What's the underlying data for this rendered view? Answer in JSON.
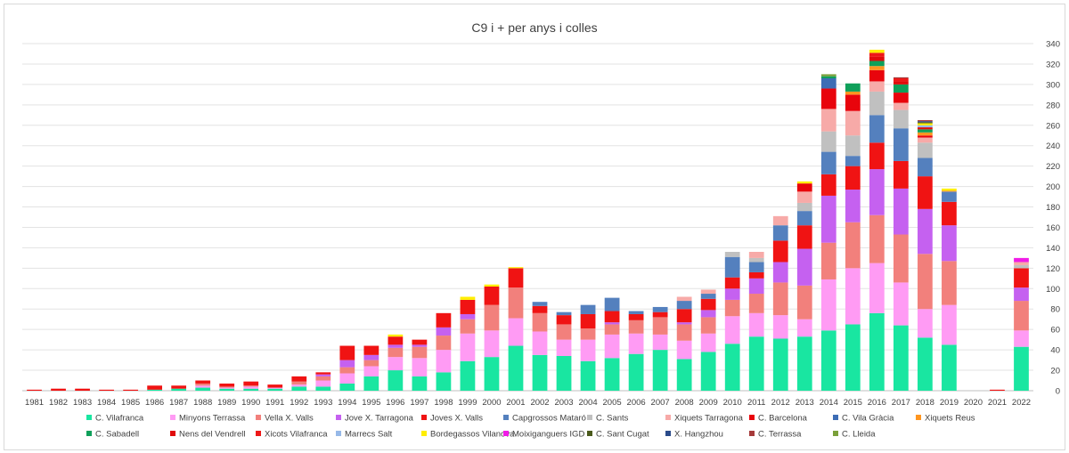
{
  "chart_data": {
    "type": "bar",
    "stacked": true,
    "title": "C9 i + per anys i colles",
    "xlabel": "",
    "ylabel": "",
    "ylim": [
      0,
      340
    ],
    "yticks": [
      0,
      20,
      40,
      60,
      80,
      100,
      120,
      140,
      160,
      180,
      200,
      220,
      240,
      260,
      280,
      300,
      320,
      340
    ],
    "grid": true,
    "legend_position": "bottom",
    "categories": [
      "1981",
      "1982",
      "1983",
      "1984",
      "1985",
      "1986",
      "1987",
      "1988",
      "1989",
      "1990",
      "1991",
      "1992",
      "1993",
      "1994",
      "1995",
      "1996",
      "1997",
      "1998",
      "1999",
      "2000",
      "2001",
      "2002",
      "2003",
      "2004",
      "2005",
      "2006",
      "2007",
      "2008",
      "2009",
      "2010",
      "2011",
      "2012",
      "2013",
      "2014",
      "2015",
      "2016",
      "2017",
      "2018",
      "2019",
      "2020",
      "2021",
      "2022"
    ],
    "series": [
      {
        "name": "C. Vilafranca",
        "color": "#19e6a1",
        "values": [
          0,
          0,
          0,
          0,
          0,
          1,
          2,
          3,
          2,
          2,
          2,
          4,
          4,
          7,
          14,
          20,
          14,
          18,
          29,
          33,
          44,
          35,
          34,
          29,
          32,
          36,
          40,
          31,
          38,
          46,
          53,
          51,
          53,
          59,
          65,
          76,
          64,
          52,
          45,
          0,
          0,
          43
        ]
      },
      {
        "name": "Minyons Terrassa",
        "color": "#ff9bf4",
        "values": [
          0,
          0,
          0,
          0,
          0,
          0,
          0,
          2,
          1,
          2,
          1,
          2,
          6,
          10,
          10,
          13,
          18,
          22,
          27,
          26,
          27,
          23,
          16,
          21,
          23,
          20,
          15,
          18,
          18,
          27,
          23,
          23,
          17,
          50,
          55,
          49,
          42,
          28,
          39,
          0,
          0,
          16
        ]
      },
      {
        "name": "Vella X. Valls",
        "color": "#f2807c",
        "values": [
          0,
          0,
          0,
          0,
          0,
          0,
          0,
          2,
          1,
          1,
          0,
          3,
          4,
          6,
          6,
          9,
          11,
          14,
          14,
          25,
          30,
          18,
          15,
          11,
          10,
          13,
          17,
          16,
          16,
          16,
          19,
          32,
          33,
          36,
          45,
          47,
          47,
          54,
          43,
          0,
          0,
          29
        ]
      },
      {
        "name": "Jove X. Tarragona",
        "color": "#c561f0",
        "values": [
          0,
          0,
          0,
          0,
          0,
          0,
          0,
          0,
          0,
          0,
          0,
          0,
          2,
          7,
          5,
          3,
          2,
          8,
          5,
          0,
          0,
          0,
          0,
          0,
          2,
          0,
          0,
          2,
          7,
          11,
          15,
          20,
          36,
          46,
          32,
          45,
          45,
          44,
          35,
          0,
          0,
          13
        ]
      },
      {
        "name": "Joves X. Valls",
        "color": "#f01313",
        "values": [
          1,
          2,
          2,
          1,
          1,
          4,
          3,
          3,
          3,
          4,
          3,
          5,
          2,
          14,
          9,
          8,
          5,
          14,
          14,
          18,
          19,
          7,
          9,
          14,
          11,
          6,
          5,
          13,
          11,
          11,
          6,
          21,
          23,
          21,
          23,
          26,
          27,
          32,
          23,
          0,
          1,
          19
        ]
      },
      {
        "name": "Capgrossos Mataró",
        "color": "#5480be",
        "values": [
          0,
          0,
          0,
          0,
          0,
          0,
          0,
          0,
          0,
          0,
          0,
          0,
          0,
          0,
          0,
          0,
          0,
          0,
          0,
          0,
          0,
          4,
          3,
          9,
          13,
          3,
          5,
          8,
          5,
          20,
          10,
          15,
          14,
          22,
          10,
          27,
          32,
          18,
          10,
          0,
          0,
          0
        ]
      },
      {
        "name": "C. Sants",
        "color": "#c0c0c0",
        "values": [
          0,
          0,
          0,
          0,
          0,
          0,
          0,
          0,
          0,
          0,
          0,
          0,
          0,
          0,
          0,
          0,
          0,
          0,
          0,
          0,
          0,
          0,
          0,
          0,
          0,
          0,
          0,
          0,
          0,
          5,
          4,
          0,
          8,
          20,
          20,
          23,
          18,
          15,
          0,
          0,
          0,
          3
        ]
      },
      {
        "name": "Xiquets Tarragona",
        "color": "#f7aaa8",
        "values": [
          0,
          0,
          0,
          0,
          0,
          0,
          0,
          0,
          0,
          0,
          0,
          0,
          0,
          0,
          0,
          0,
          0,
          0,
          0,
          0,
          0,
          0,
          0,
          0,
          0,
          0,
          0,
          4,
          4,
          0,
          6,
          9,
          11,
          22,
          24,
          10,
          7,
          5,
          0,
          0,
          0,
          3
        ]
      },
      {
        "name": "C. Barcelona",
        "color": "#e8040c",
        "values": [
          0,
          0,
          0,
          0,
          0,
          0,
          0,
          0,
          0,
          0,
          0,
          0,
          0,
          0,
          0,
          0,
          0,
          0,
          0,
          0,
          0,
          0,
          0,
          0,
          0,
          0,
          0,
          0,
          0,
          0,
          0,
          0,
          8,
          20,
          16,
          11,
          10,
          2,
          0,
          0,
          0,
          0
        ]
      },
      {
        "name": "C. Vila Gràcia",
        "color": "#3d6db5",
        "values": [
          0,
          0,
          0,
          0,
          0,
          0,
          0,
          0,
          0,
          0,
          0,
          0,
          0,
          0,
          0,
          0,
          0,
          0,
          0,
          0,
          0,
          0,
          0,
          0,
          0,
          0,
          0,
          0,
          0,
          0,
          0,
          0,
          0,
          10,
          0,
          0,
          0,
          0,
          0,
          0,
          0,
          0
        ]
      },
      {
        "name": "Xiquets Reus",
        "color": "#ff9620",
        "values": [
          0,
          0,
          0,
          0,
          0,
          0,
          0,
          0,
          0,
          0,
          0,
          0,
          0,
          0,
          0,
          0,
          0,
          0,
          0,
          0,
          0,
          0,
          0,
          0,
          0,
          0,
          0,
          0,
          0,
          0,
          0,
          0,
          0,
          0,
          3,
          4,
          0,
          3,
          1,
          0,
          0,
          0
        ]
      },
      {
        "name": "C. Sabadell",
        "color": "#0fa05a",
        "values": [
          0,
          0,
          0,
          0,
          0,
          0,
          0,
          0,
          0,
          0,
          0,
          0,
          0,
          0,
          0,
          0,
          0,
          0,
          0,
          0,
          0,
          0,
          0,
          0,
          0,
          0,
          0,
          0,
          0,
          0,
          0,
          0,
          0,
          2,
          8,
          5,
          8,
          3,
          0,
          0,
          0,
          0
        ]
      },
      {
        "name": "Nens del Vendrell",
        "color": "#e00b0b",
        "values": [
          0,
          0,
          0,
          0,
          0,
          0,
          0,
          0,
          0,
          0,
          0,
          0,
          0,
          0,
          0,
          0,
          0,
          0,
          0,
          0,
          0,
          0,
          0,
          0,
          0,
          0,
          0,
          0,
          0,
          0,
          0,
          0,
          0,
          0,
          0,
          4,
          3,
          2,
          0,
          0,
          0,
          0
        ]
      },
      {
        "name": "Xicots Vilafranca",
        "color": "#ee1818",
        "values": [
          0,
          0,
          0,
          0,
          0,
          0,
          0,
          0,
          0,
          0,
          0,
          0,
          0,
          0,
          0,
          0,
          0,
          0,
          0,
          0,
          0,
          0,
          0,
          0,
          0,
          0,
          0,
          0,
          0,
          0,
          0,
          0,
          0,
          0,
          0,
          4,
          3,
          0,
          0,
          0,
          0,
          0
        ]
      },
      {
        "name": "Marrecs Salt",
        "color": "#97b9e8",
        "values": [
          0,
          0,
          0,
          0,
          0,
          0,
          0,
          0,
          0,
          0,
          0,
          0,
          0,
          0,
          0,
          0,
          0,
          0,
          0,
          0,
          0,
          0,
          0,
          0,
          0,
          0,
          0,
          0,
          0,
          0,
          0,
          0,
          0,
          0,
          0,
          0,
          0,
          2,
          0,
          0,
          0,
          0
        ]
      },
      {
        "name": "Bordegassos Vilanova",
        "color": "#ffee00",
        "values": [
          0,
          0,
          0,
          0,
          0,
          0,
          0,
          0,
          0,
          0,
          0,
          0,
          0,
          0,
          0,
          2,
          0,
          0,
          3,
          2,
          1,
          0,
          0,
          0,
          0,
          0,
          0,
          0,
          0,
          0,
          0,
          0,
          2,
          0,
          0,
          3,
          0,
          2,
          2,
          0,
          0,
          0
        ]
      },
      {
        "name": "Moixiganguers IGD",
        "color": "#f01ce6",
        "values": [
          0,
          0,
          0,
          0,
          0,
          0,
          0,
          0,
          0,
          0,
          0,
          0,
          0,
          0,
          0,
          0,
          0,
          0,
          0,
          0,
          0,
          0,
          0,
          0,
          0,
          0,
          0,
          0,
          0,
          0,
          0,
          0,
          0,
          0,
          0,
          0,
          0,
          0,
          0,
          0,
          0,
          4
        ]
      },
      {
        "name": "C. Sant Cugat",
        "color": "#4a5a1c",
        "values": [
          0,
          0,
          0,
          0,
          0,
          0,
          0,
          0,
          0,
          0,
          0,
          0,
          0,
          0,
          0,
          0,
          0,
          0,
          0,
          0,
          0,
          0,
          0,
          0,
          0,
          0,
          0,
          0,
          0,
          0,
          0,
          0,
          0,
          0,
          0,
          0,
          0,
          1,
          0,
          0,
          0,
          0
        ]
      },
      {
        "name": "X. Hangzhou",
        "color": "#2a4b8a",
        "values": [
          0,
          0,
          0,
          0,
          0,
          0,
          0,
          0,
          0,
          0,
          0,
          0,
          0,
          0,
          0,
          0,
          0,
          0,
          0,
          0,
          0,
          0,
          0,
          0,
          0,
          0,
          0,
          0,
          0,
          0,
          0,
          0,
          0,
          0,
          0,
          0,
          0,
          1,
          0,
          0,
          0,
          0
        ]
      },
      {
        "name": "C. Terrassa",
        "color": "#a63a3a",
        "values": [
          0,
          0,
          0,
          0,
          0,
          0,
          0,
          0,
          0,
          0,
          0,
          0,
          0,
          0,
          0,
          0,
          0,
          0,
          0,
          0,
          0,
          0,
          0,
          0,
          0,
          0,
          0,
          0,
          0,
          0,
          0,
          0,
          0,
          0,
          0,
          0,
          1,
          1,
          0,
          0,
          0,
          0
        ]
      },
      {
        "name": "C. Lleida",
        "color": "#7aa03a",
        "values": [
          0,
          0,
          0,
          0,
          0,
          0,
          0,
          0,
          0,
          0,
          0,
          0,
          0,
          0,
          0,
          0,
          0,
          0,
          0,
          0,
          0,
          0,
          0,
          0,
          0,
          0,
          0,
          0,
          0,
          0,
          0,
          0,
          0,
          2,
          0,
          0,
          0,
          0,
          0,
          0,
          0,
          0
        ]
      }
    ]
  }
}
